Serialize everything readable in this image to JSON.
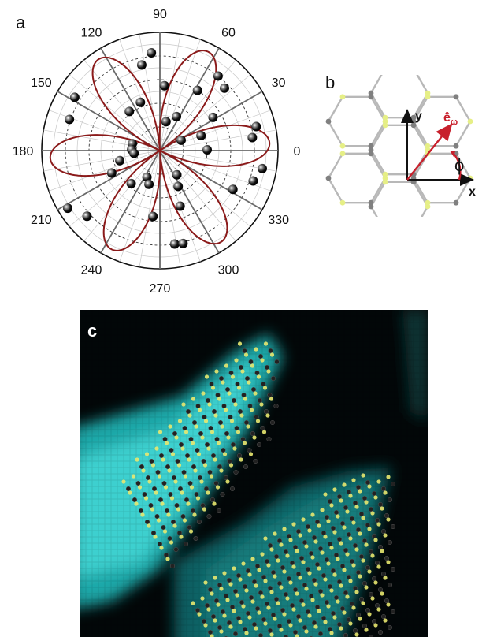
{
  "panels": {
    "a": "a",
    "b": "b",
    "c": "c"
  },
  "chart_data": {
    "type": "polar",
    "angle_ticks": [
      "0",
      "30",
      "60",
      "90",
      "120",
      "150",
      "180",
      "210",
      "240",
      "270",
      "300",
      "330"
    ],
    "angle_tick_values_deg": [
      0,
      30,
      60,
      90,
      120,
      150,
      180,
      210,
      240,
      270,
      300,
      330
    ],
    "radial_range": [
      0,
      1
    ],
    "grid": true,
    "series": [
      {
        "kind": "points",
        "points": [
          {
            "theta": 1,
            "r": 0.4
          },
          {
            "theta": 8,
            "r": 0.79
          },
          {
            "theta": 14,
            "r": 0.84
          },
          {
            "theta": 20,
            "r": 0.37
          },
          {
            "theta": 26,
            "r": 0.2
          },
          {
            "theta": 32,
            "r": 0.53
          },
          {
            "theta": 44,
            "r": 0.76
          },
          {
            "theta": 52,
            "r": 0.8
          },
          {
            "theta": 58,
            "r": 0.6
          },
          {
            "theta": 64,
            "r": 0.32
          },
          {
            "theta": 78,
            "r": 0.25
          },
          {
            "theta": 86,
            "r": 0.55
          },
          {
            "theta": 95,
            "r": 0.83
          },
          {
            "theta": 102,
            "r": 0.74
          },
          {
            "theta": 112,
            "r": 0.44
          },
          {
            "theta": 128,
            "r": 0.42
          },
          {
            "theta": 148,
            "r": 0.85
          },
          {
            "theta": 161,
            "r": 0.81
          },
          {
            "theta": 166,
            "r": 0.24
          },
          {
            "theta": 178,
            "r": 0.24
          },
          {
            "theta": 186,
            "r": 0.22
          },
          {
            "theta": 194,
            "r": 0.35
          },
          {
            "theta": 205,
            "r": 0.45
          },
          {
            "theta": 212,
            "r": 0.92
          },
          {
            "theta": 222,
            "r": 0.83
          },
          {
            "theta": 229,
            "r": 0.37
          },
          {
            "theta": 244,
            "r": 0.25
          },
          {
            "theta": 252,
            "r": 0.3
          },
          {
            "theta": 264,
            "r": 0.56
          },
          {
            "theta": 279,
            "r": 0.8
          },
          {
            "theta": 284,
            "r": 0.81
          },
          {
            "theta": 290,
            "r": 0.5
          },
          {
            "theta": 297,
            "r": 0.34
          },
          {
            "theta": 305,
            "r": 0.25
          },
          {
            "theta": 332,
            "r": 0.7
          },
          {
            "theta": 342,
            "r": 0.83
          },
          {
            "theta": 350,
            "r": 0.88
          }
        ]
      },
      {
        "kind": "fit",
        "formula": "r = |cos(3*(theta - phi0))|",
        "phi0_deg": 4
      }
    ]
  },
  "lattice": {
    "axis_x": "x",
    "axis_y": "y",
    "vector_label": "ê",
    "vector_subscript": "ω",
    "angle_label": "ϕ",
    "colors": {
      "bond": "#b8b8b8",
      "site_a": "#e6ef86",
      "site_b": "#808080",
      "vector": "#c8202c",
      "axis": "#111111"
    }
  },
  "micrograph": {
    "colors": {
      "background": "#020708",
      "flake": "#2ec5c5",
      "flake_dim": "#0f6f72",
      "site_a": "#e8e870",
      "site_b": "#222222"
    }
  }
}
